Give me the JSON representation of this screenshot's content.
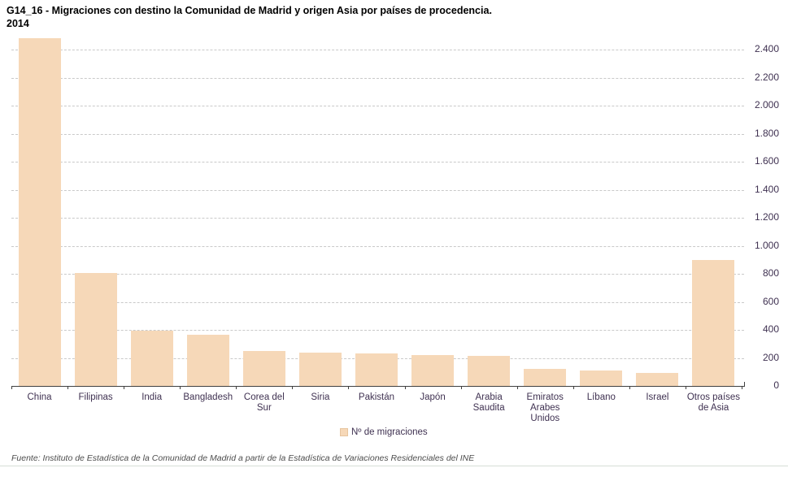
{
  "title": {
    "line1": "G14_16 - Migraciones con destino la Comunidad de Madrid y origen Asia por países de procedencia.",
    "line2": "2014"
  },
  "legend": {
    "label": "Nº de migraciones"
  },
  "source": "Fuente: Instituto de Estadística de la Comunidad de Madrid a partir de la Estadística de Variaciones Residenciales del INE",
  "colors": {
    "bar_fill": "#f6d8b8",
    "axis_text": "#3f3151",
    "gridline": "#c9c9c9",
    "axis_line": "#3f3f3f"
  },
  "chart_data": {
    "type": "bar",
    "title": "G14_16 - Migraciones con destino la Comunidad de Madrid y origen Asia por países de procedencia. 2014",
    "series_name": "Nº de migraciones",
    "categories": [
      "China",
      "Filipinas",
      "India",
      "Bangladesh",
      "Corea del Sur",
      "Siria",
      "Pakistán",
      "Japón",
      "Arabia Saudita",
      "Emiratos Arabes Unidos",
      "Líbano",
      "Israel",
      "Otros países de Asia"
    ],
    "values": [
      2480,
      805,
      395,
      365,
      250,
      240,
      232,
      220,
      215,
      122,
      110,
      95,
      900
    ],
    "xlabel": "",
    "ylabel": "",
    "ylim": [
      0,
      2400
    ],
    "ytick_step": 200,
    "ytick_labels": [
      "0",
      "200",
      "400",
      "600",
      "800",
      "1.000",
      "1.200",
      "1.400",
      "1.600",
      "1.800",
      "2.000",
      "2.200",
      "2.400"
    ],
    "grid": true,
    "gridline_style": "dashed",
    "value_axis_side": "right",
    "legend_position": "bottom"
  }
}
